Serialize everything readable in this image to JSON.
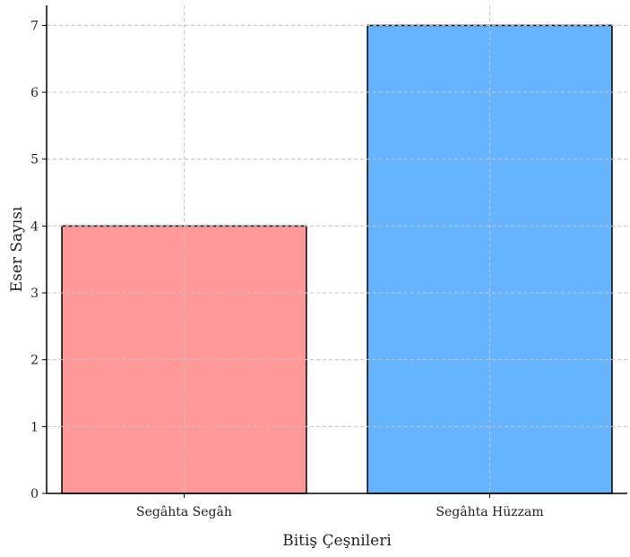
{
  "chart_data": {
    "type": "bar",
    "title": "",
    "xlabel": "Bitiş Çeşnileri",
    "ylabel": "Eser Sayısı",
    "categories": [
      "Segâhta Segâh",
      "Segâhta Hüzzam"
    ],
    "values": [
      4,
      7
    ],
    "colors": [
      "#ff9999",
      "#66b3ff"
    ],
    "ylim": [
      0,
      7.3
    ],
    "yticks": [
      0,
      1,
      2,
      3,
      4,
      5,
      6,
      7
    ],
    "grid": true,
    "legend": "none"
  }
}
